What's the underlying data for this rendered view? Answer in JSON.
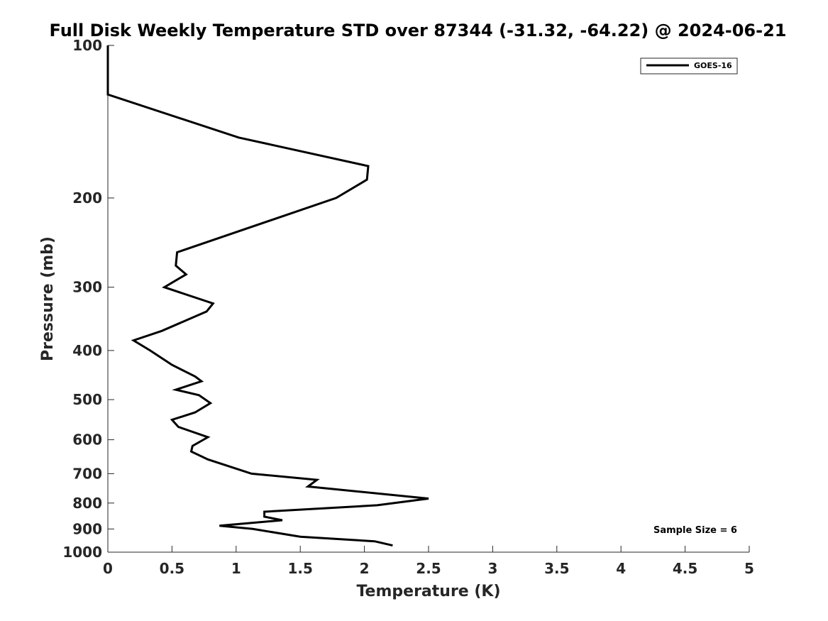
{
  "chart_data": {
    "type": "line",
    "title": "Full Disk Weekly Temperature STD over 87344 (-31.32, -64.22) @ 2024-06-21",
    "xlabel": "Temperature (K)",
    "ylabel": "Pressure (mb)",
    "xlim": [
      0,
      5
    ],
    "ylim": [
      100,
      1000
    ],
    "y_scale": "log",
    "y_direction": "reversed",
    "grid": false,
    "legend_position": "top-right",
    "x_ticks": [
      "0",
      "0.5",
      "1",
      "1.5",
      "2",
      "2.5",
      "3",
      "3.5",
      "4",
      "4.5",
      "5"
    ],
    "y_ticks": [
      "100",
      "200",
      "300",
      "400",
      "500",
      "600",
      "700",
      "800",
      "900",
      "1000"
    ],
    "annotation": "Sample Size = 6",
    "series": [
      {
        "name": "GOES-16",
        "color": "#000000",
        "x": [
          0.0,
          0.0,
          1.02,
          2.03,
          2.02,
          1.78,
          0.54,
          0.53,
          0.61,
          0.44,
          0.82,
          0.77,
          0.42,
          0.2,
          0.33,
          0.5,
          0.68,
          0.73,
          0.53,
          0.71,
          0.8,
          0.68,
          0.5,
          0.55,
          0.78,
          0.66,
          0.65,
          0.78,
          1.12,
          1.63,
          1.56,
          2.5,
          2.1,
          1.22,
          1.22,
          1.36,
          0.87,
          1.13,
          1.5,
          2.08,
          2.22
        ],
        "y": [
          100,
          125,
          152,
          173,
          184,
          200,
          256,
          272,
          283,
          300,
          323,
          335,
          366,
          382,
          400,
          427,
          450,
          460,
          478,
          490,
          508,
          530,
          548,
          566,
          593,
          617,
          633,
          656,
          700,
          720,
          742,
          784,
          808,
          832,
          851,
          865,
          887,
          900,
          932,
          952,
          970
        ]
      }
    ]
  }
}
